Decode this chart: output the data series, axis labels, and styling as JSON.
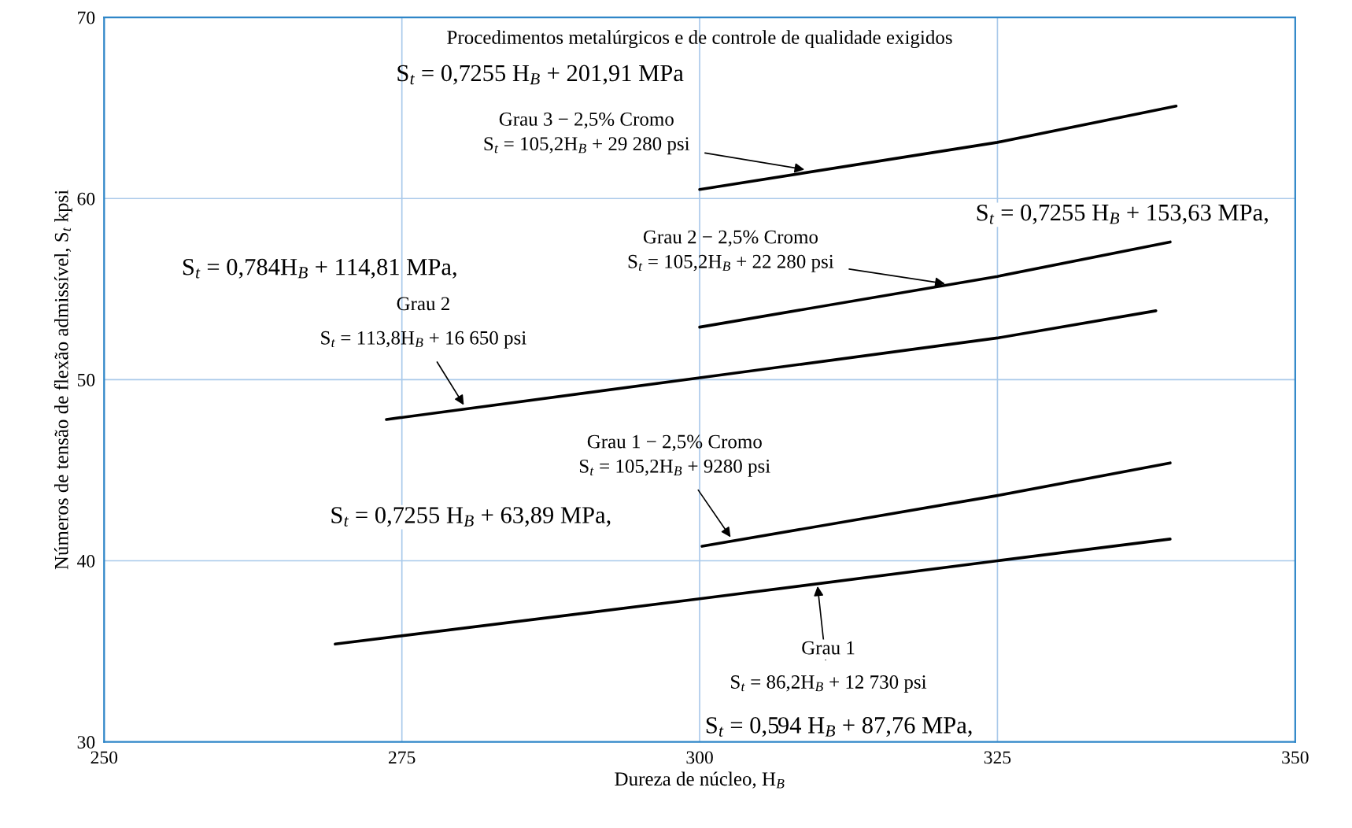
{
  "chart_data": {
    "type": "line",
    "xlabel": "Dureza de núcleo, H$_{B}$",
    "ylabel": "Números de tensão de flexão admissível, S$_{t}$ kpsi",
    "xlim": [
      250,
      350
    ],
    "xticks": [
      250,
      275,
      300,
      325,
      350
    ],
    "ylim": [
      30,
      70
    ],
    "yticks": [
      30,
      40,
      50,
      60,
      70
    ],
    "grid": true,
    "marker": "none",
    "line_style": "solid",
    "series": [
      {
        "color": "#000000",
        "x": [
          300,
          325,
          340
        ],
        "values": [
          60.5,
          63.1,
          65.1
        ]
      },
      {
        "color": "#000000",
        "x": [
          300,
          325,
          339.5
        ],
        "values": [
          52.9,
          55.7,
          57.6
        ]
      },
      {
        "color": "#000000",
        "x": [
          273.7,
          300,
          325,
          338.3
        ],
        "values": [
          47.8,
          50.1,
          52.3,
          53.8
        ]
      },
      {
        "color": "#000000",
        "x": [
          300.2,
          325,
          339.5
        ],
        "values": [
          40.8,
          43.6,
          45.4
        ]
      },
      {
        "color": "#000000",
        "x": [
          269.4,
          300,
          325,
          339.5
        ],
        "values": [
          35.4,
          37.9,
          40.0,
          41.2
        ]
      }
    ],
    "annotations": [
      "Procedimentos metalúrgicos e de controle de qualidade exigidos",
      "S$_{t}$ = 0,7255 H$_{B}$ + 201,91 MPa",
      {
        "text": "Grau 3 − 2,5% Cromo\nS$_{t}$ = 105,2H$_{B}$ + 29 280 psi",
        "x": 308.8,
        "y": 61.6
      },
      "S$_{t}$ = 0,7255 H$_{B}$ + 153,63 MPa,",
      {
        "text": "Grau 2 − 2,5% Cromo\nS$_{t}$ = 105,2H$_{B}$ + 22 280 psi",
        "x": 320.6,
        "y": 55.3
      },
      "S$_{t}$ = 0,784H$_{B}$ + 114,81 MPa,",
      "Grau 2",
      {
        "text": "S$_{t}$ = 113,8H$_{B}$ + 16 650 psi",
        "x": 280.2,
        "y": 48.6
      },
      {
        "text": "Grau 1 − 2,5% Cromo\nS$_{t}$ = 105,2H$_{B}$ + 9280 psi",
        "x": 302.6,
        "y": 41.3
      },
      "S$_{t}$ = 0,7255 H$_{B}$ + 63,89 MPa,",
      "Grau 1",
      {
        "text": "S$_{t}$ = 86,2H$_{B}$ + 12 730 psi",
        "x": 309.9,
        "y": 38.6
      },
      "S$_{t}$ = 0,594 H$_{B}$ + 87,76 MPa,"
    ]
  }
}
